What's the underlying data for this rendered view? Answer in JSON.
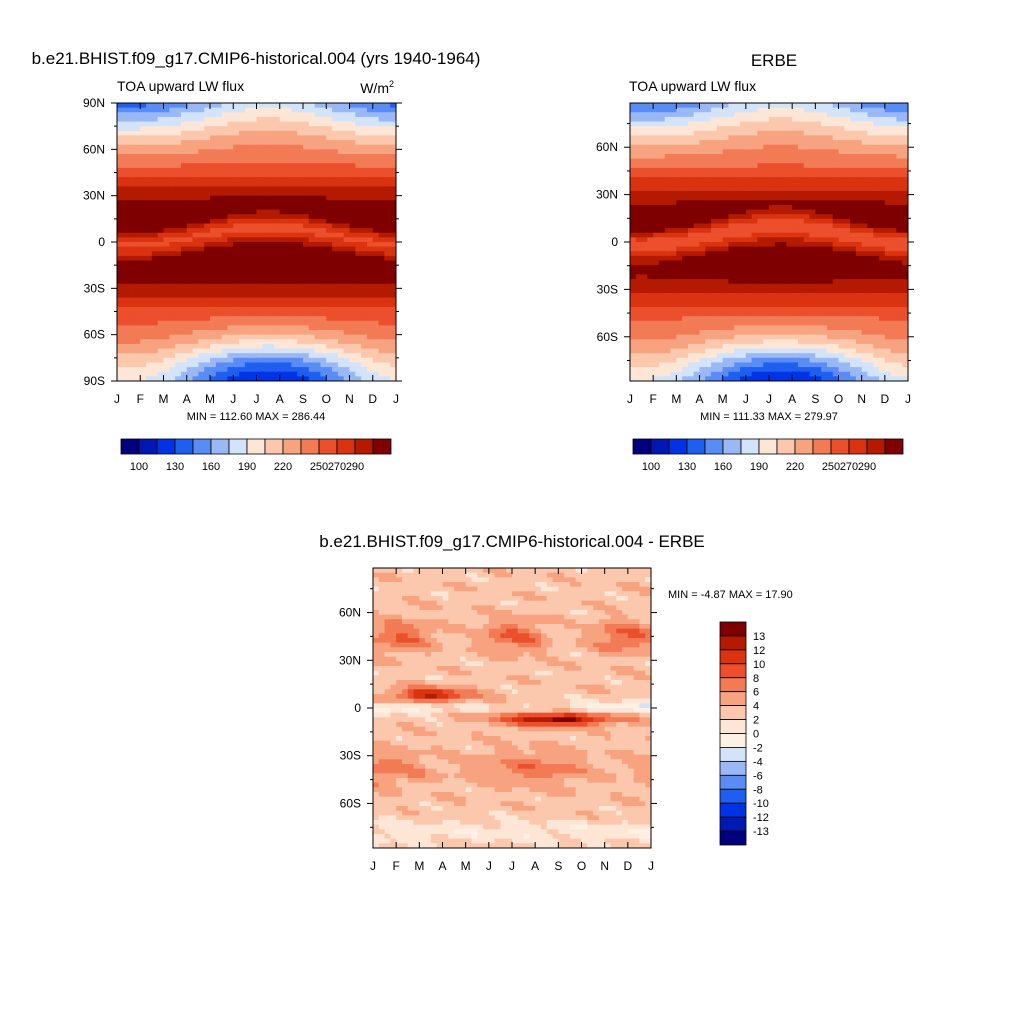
{
  "colors": {
    "palette": [
      "#00007f",
      "#0019b3",
      "#0033e6",
      "#1e5ff0",
      "#5a8cf5",
      "#99b8f5",
      "#d2e3fa",
      "#fde6d6",
      "#fbc8ad",
      "#f7a380",
      "#f27a55",
      "#eb4f2c",
      "#d93310",
      "#b31a00",
      "#7f0000"
    ],
    "diff_palette": [
      "#00007f",
      "#0019b3",
      "#0033e6",
      "#1e5ff0",
      "#5a8cf5",
      "#99b8f5",
      "#d2e3fa",
      "#fff0e4",
      "#fde6d6",
      "#fbc8ad",
      "#f7a380",
      "#f27a55",
      "#eb4f2c",
      "#d93310",
      "#b31a00",
      "#7f0000"
    ]
  },
  "chart_data": [
    {
      "id": "model",
      "type": "heatmap",
      "title": "b.e21.BHIST.f09_g17.CMIP6-historical.004 (yrs 1940-1964)",
      "subtitle_left": "TOA upward LW flux",
      "subtitle_right_base": "W/m",
      "subtitle_right_sup": "2",
      "x_tick_labels": [
        "J",
        "F",
        "M",
        "A",
        "M",
        "J",
        "J",
        "A",
        "S",
        "O",
        "N",
        "D",
        "J"
      ],
      "y_tick_labels": [
        "90N",
        "60N",
        "30N",
        "0",
        "30S",
        "60S",
        "90S"
      ],
      "y_tick_values": [
        90,
        60,
        30,
        0,
        -30,
        -60,
        -90
      ],
      "ylim": [
        -90,
        90
      ],
      "minmax": "MIN = 112.60 MAX = 286.44",
      "min": 112.6,
      "max": 286.44,
      "colorbar_labels": [
        "100",
        "130",
        "160",
        "190",
        "220",
        "250",
        "270",
        "290"
      ],
      "levels": [
        100,
        115,
        130,
        145,
        160,
        175,
        190,
        205,
        220,
        235,
        250,
        260,
        270,
        280,
        290
      ]
    },
    {
      "id": "obs",
      "type": "heatmap",
      "title": "ERBE",
      "subtitle_left": "TOA upward LW flux",
      "x_tick_labels": [
        "J",
        "F",
        "M",
        "A",
        "M",
        "J",
        "J",
        "A",
        "S",
        "O",
        "N",
        "D",
        "J"
      ],
      "y_tick_labels": [
        "60N",
        "30N",
        "0",
        "30S",
        "60S"
      ],
      "y_tick_values": [
        60,
        30,
        0,
        -30,
        -60
      ],
      "ylim": [
        -88,
        88
      ],
      "minmax": "MIN = 111.33 MAX = 279.97",
      "min": 111.33,
      "max": 279.97,
      "colorbar_labels": [
        "100",
        "130",
        "160",
        "190",
        "220",
        "250",
        "270",
        "290"
      ],
      "levels": [
        100,
        115,
        130,
        145,
        160,
        175,
        190,
        205,
        220,
        235,
        250,
        260,
        270,
        280,
        290
      ]
    },
    {
      "id": "diff",
      "type": "heatmap",
      "title": "b.e21.BHIST.f09_g17.CMIP6-historical.004 - ERBE",
      "x_tick_labels": [
        "J",
        "F",
        "M",
        "A",
        "M",
        "J",
        "J",
        "A",
        "S",
        "O",
        "N",
        "D",
        "J"
      ],
      "y_tick_labels": [
        "60N",
        "30N",
        "0",
        "30S",
        "60S"
      ],
      "y_tick_values": [
        60,
        30,
        0,
        -30,
        -60
      ],
      "ylim": [
        -88,
        88
      ],
      "minmax": "MIN =  -4.87 MAX =  17.90",
      "min": -4.87,
      "max": 17.9,
      "colorbar_labels": [
        "13",
        "12",
        "10",
        "8",
        "6",
        "4",
        "2",
        "0",
        "-2",
        "-4",
        "-6",
        "-8",
        "-10",
        "-12",
        "-13"
      ],
      "levels": [
        -13,
        -12,
        -10,
        -8,
        -6,
        -4,
        -2,
        0,
        2,
        4,
        6,
        8,
        10,
        12,
        13
      ]
    }
  ]
}
